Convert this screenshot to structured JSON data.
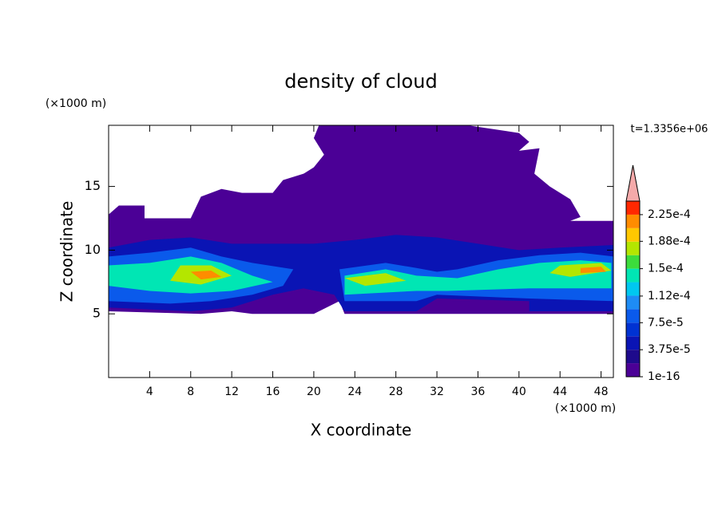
{
  "chart_data": {
    "type": "contour",
    "title": "density of cloud",
    "x_label": "X coordinate",
    "y_label": "Z coordinate",
    "x_unit": "(×1000 m)",
    "y_unit": "(×1000 m)",
    "time_label": "t=1.3356e+06",
    "xlim": [
      0,
      49.2
    ],
    "xticks": [
      4,
      8,
      12,
      16,
      20,
      24,
      28,
      32,
      36,
      40,
      44,
      48
    ],
    "ylim": [
      0,
      19.8
    ],
    "yticks": [
      5,
      10,
      15
    ],
    "clim": [
      0,
      0.00024375
    ],
    "cticks": [
      1e-16,
      {
        "value": 3.75e-05,
        "label": "3.75e-5"
      },
      {
        "value": 7.5e-05,
        "label": "7.5e-5"
      },
      {
        "value": 0.000112,
        "label": "1.12e-4"
      },
      {
        "value": 0.00015,
        "label": "1.5e-4"
      },
      {
        "value": 0.000188,
        "label": "1.88e-4"
      },
      {
        "value": 0.000225,
        "label": "2.25e-4"
      }
    ],
    "colors": [
      "#4b0096",
      "#1e0a8c",
      "#0a14b4",
      "#0032d2",
      "#0a5aeb",
      "#1e8cf5",
      "#00c8f0",
      "#00e6b4",
      "#3cdc3c",
      "#b4e600",
      "#ffc800",
      "#ff8c00",
      "#ff2800"
    ],
    "over_color": "#f5aaaa",
    "regions": [
      {
        "value": 0,
        "points": [
          [
            0,
            12.8
          ],
          [
            1,
            13.5
          ],
          [
            3.5,
            13.5
          ],
          [
            3.5,
            12.5
          ],
          [
            8,
            12.5
          ],
          [
            9,
            14.2
          ],
          [
            11,
            14.8
          ],
          [
            13,
            14.5
          ],
          [
            16,
            14.5
          ],
          [
            17,
            15.5
          ],
          [
            19,
            16
          ],
          [
            20,
            16.5
          ],
          [
            21,
            17.5
          ],
          [
            20,
            18.8
          ],
          [
            20.5,
            19.8
          ],
          [
            35,
            19.8
          ],
          [
            40,
            19.2
          ],
          [
            41,
            18.5
          ],
          [
            40,
            17.8
          ],
          [
            42,
            18
          ],
          [
            41.5,
            16
          ],
          [
            43,
            15
          ],
          [
            45,
            14
          ],
          [
            46,
            12.6
          ],
          [
            45,
            12.3
          ],
          [
            49.2,
            12.3
          ],
          [
            49.2,
            5
          ],
          [
            23,
            5
          ],
          [
            22.5,
            6
          ],
          [
            20,
            5
          ],
          [
            14,
            5
          ],
          [
            12,
            5.2
          ],
          [
            9,
            5
          ],
          [
            0,
            5.2
          ]
        ]
      },
      {
        "value": 3.75e-05,
        "points": [
          [
            0,
            10.2
          ],
          [
            4,
            10.8
          ],
          [
            8,
            11
          ],
          [
            12,
            10.5
          ],
          [
            16,
            10.5
          ],
          [
            20,
            10.5
          ],
          [
            24,
            10.8
          ],
          [
            28,
            11.2
          ],
          [
            32,
            11
          ],
          [
            36,
            10.5
          ],
          [
            40,
            10
          ],
          [
            44,
            10.2
          ],
          [
            49.2,
            10.4
          ],
          [
            49.2,
            5.2
          ],
          [
            41,
            5.2
          ],
          [
            41,
            6
          ],
          [
            32,
            6.2
          ],
          [
            30,
            5.2
          ],
          [
            23,
            5.2
          ],
          [
            22,
            6.5
          ],
          [
            19,
            7
          ],
          [
            16,
            6.5
          ],
          [
            12,
            5.5
          ],
          [
            8,
            5.2
          ],
          [
            0,
            5.5
          ]
        ]
      },
      {
        "value": 7.5e-05,
        "points": [
          [
            0,
            9.5
          ],
          [
            4,
            9.8
          ],
          [
            8,
            10.2
          ],
          [
            11,
            9.5
          ],
          [
            14,
            9
          ],
          [
            18,
            8.5
          ],
          [
            17,
            7.2
          ],
          [
            14,
            6.5
          ],
          [
            10,
            6
          ],
          [
            6,
            5.8
          ],
          [
            0,
            6
          ]
        ]
      },
      {
        "value": 7.5e-05,
        "points": [
          [
            22.5,
            8.5
          ],
          [
            27,
            9
          ],
          [
            30,
            8.6
          ],
          [
            32,
            8.3
          ],
          [
            34,
            8.5
          ],
          [
            38,
            9.2
          ],
          [
            42,
            9.6
          ],
          [
            46,
            9.8
          ],
          [
            49.2,
            9.5
          ],
          [
            49.2,
            6
          ],
          [
            41,
            6.2
          ],
          [
            32,
            6.5
          ],
          [
            30,
            6
          ],
          [
            23,
            6
          ]
        ]
      },
      {
        "value": 0.00013125,
        "points": [
          [
            0,
            8.8
          ],
          [
            4,
            9
          ],
          [
            8,
            9.5
          ],
          [
            11,
            9
          ],
          [
            14,
            8
          ],
          [
            16,
            7.5
          ],
          [
            12,
            6.8
          ],
          [
            8,
            6.6
          ],
          [
            4,
            6.8
          ],
          [
            0,
            7.2
          ]
        ]
      },
      {
        "value": 0.00013125,
        "points": [
          [
            23,
            8
          ],
          [
            27,
            8.5
          ],
          [
            30,
            8
          ],
          [
            34,
            7.8
          ],
          [
            38,
            8.5
          ],
          [
            42,
            9
          ],
          [
            46,
            9.2
          ],
          [
            49,
            9
          ],
          [
            49,
            7
          ],
          [
            41,
            7
          ],
          [
            33,
            6.8
          ],
          [
            30,
            6.8
          ],
          [
            23,
            6.5
          ]
        ]
      },
      {
        "value": 0.00016875,
        "points": [
          [
            7,
            8.8
          ],
          [
            10,
            8.8
          ],
          [
            12,
            8
          ],
          [
            9,
            7.3
          ],
          [
            6,
            7.6
          ]
        ]
      },
      {
        "value": 0.00016875,
        "points": [
          [
            23,
            7.8
          ],
          [
            27,
            8.2
          ],
          [
            29,
            7.6
          ],
          [
            25,
            7.2
          ]
        ]
      },
      {
        "value": 0.00016875,
        "points": [
          [
            44,
            8.8
          ],
          [
            48,
            9
          ],
          [
            49,
            8.4
          ],
          [
            45,
            7.9
          ],
          [
            43,
            8.2
          ]
        ]
      },
      {
        "value": 0.00020625,
        "points": [
          [
            8,
            8.3
          ],
          [
            10,
            8.4
          ],
          [
            11,
            7.9
          ],
          [
            9,
            7.7
          ]
        ]
      },
      {
        "value": 0.00020625,
        "points": [
          [
            46,
            8.6
          ],
          [
            48,
            8.7
          ],
          [
            48.5,
            8.3
          ],
          [
            46,
            8.2
          ]
        ]
      }
    ]
  }
}
